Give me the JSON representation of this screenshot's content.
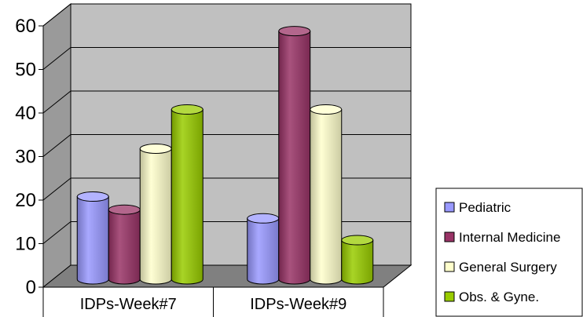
{
  "chart_data": {
    "type": "bar",
    "title": "",
    "xlabel": "",
    "ylabel": "",
    "categories": [
      "IDPs-Week#7",
      "IDPs-Week#9"
    ],
    "series": [
      {
        "name": "Pediatric",
        "values": [
          19,
          14
        ],
        "color": "#9999ff"
      },
      {
        "name": "Internal Medicine",
        "values": [
          16,
          57
        ],
        "color": "#993366"
      },
      {
        "name": "General Surgery",
        "values": [
          30,
          39
        ],
        "color": "#ffffcc"
      },
      {
        "name": "Obs. & Gyne.",
        "values": [
          39,
          9
        ],
        "color": "#99cc00"
      }
    ],
    "ylim": [
      0,
      60
    ],
    "yticks": [
      0,
      10,
      20,
      30,
      40,
      50,
      60
    ],
    "grid": true,
    "legend": "right",
    "background": "#c0c0c0",
    "floor": "#808080"
  }
}
